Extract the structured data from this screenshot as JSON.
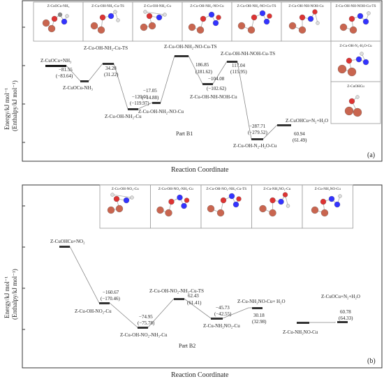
{
  "partA": {
    "ylabel": "Energy/kJ mol⁻¹",
    "ylabel2": "(Enthalpy/kJ mol⁻¹)",
    "xlabel": "Reaction Coordinate",
    "part_label": "Part B1",
    "panel_tag": "(a)",
    "structures": [
      "Z-CuOCu-NH₃",
      "Z-Cu-OH-NH₂-Cu-TS",
      "Z-Cu-OH-NH₂-Cu",
      "Z-Cu-OH-NH₂-NO-Cu",
      "Z-Cu-OH-NH₂-NO-Cu-TS",
      "Z-Cu-OH-NH-NOH-Cu",
      "Z-Cu-OH-NH-NOH-Cu-TS"
    ],
    "side_structures": [
      "Z-Cu-OH-N₂-H₂O-Cu",
      "Z-CuOHCu"
    ],
    "levels": [
      {
        "name": "Z-CuOCu+NH₃",
        "e": "",
        "h": ""
      },
      {
        "name": "Z-CuOCu-NH₃",
        "e": "−81.55",
        "h": "(−83.64)"
      },
      {
        "name": "Z-Cu-OH-NH₂-Cu-TS",
        "e": "34.28",
        "h": "(31.22)"
      },
      {
        "name": "Z-Cu-OH-NH₂-Cu",
        "e": "−120.01",
        "h": "(−119.97)"
      },
      {
        "name": "Z-Cu-OH-NH₂-NO-Cu",
        "e": "−17.05",
        "h": "(−14.88)"
      },
      {
        "name": "Z-Cu-OH-NH₂-NO-Cu-TS",
        "e": "186.85",
        "h": "(181.62)"
      },
      {
        "name": "Z-Cu-OH-NH-NOH-Cu",
        "e": "−104.08",
        "h": "(−102.62)"
      },
      {
        "name": "Z-Cu-OH-NH-NOH-Cu-TS",
        "e": "117.04",
        "h": "(115.95)"
      },
      {
        "name": "Z-Cu-OH-N₂-H₂O-Cu",
        "e": "−287.71",
        "h": "(−279.52)"
      },
      {
        "name": "Z-CuOHCu+N₂+H₂O",
        "e": "60.94",
        "h": "(61.49)"
      }
    ]
  },
  "partB": {
    "ylabel": "Energy/kJ mol⁻¹",
    "ylabel2": "(Enthalpy/kJ mol⁻¹)",
    "xlabel": "Reaction Coordinate",
    "part_label": "Part B2",
    "panel_tag": "(b)",
    "structures": [
      "Z-Cu-OH-NO₂-Cu",
      "Z-Cu-OH-NO₂-NH₃-Cu",
      "Z-Cu-OH-NO₂-NH₃-Cu-TS",
      "Z-Cu-NH₂NO₂-Cu",
      "Z-Cu-NH₂NO-Cu"
    ],
    "levels": [
      {
        "name": "Z-CuOHCu+NO₂",
        "e": "",
        "h": ""
      },
      {
        "name": "Z-Cu-OH-NO₂-Cu",
        "e": "−160.67",
        "h": "(−170.46)"
      },
      {
        "name": "Z-Cu-OH-NO₂-NH₃-Cu",
        "e": "−74.95",
        "h": "(−75.78)"
      },
      {
        "name": "Z-Cu-OH-NO₂-NH₃-Cu-TS",
        "e": "62.43",
        "h": "(61.41)"
      },
      {
        "name": "Z-Cu-NH₂NO₂-Cu",
        "e": "−45.73",
        "h": "(−42.55)"
      },
      {
        "name": "Z-Cu-NH₂NO-Cu+ H₂O",
        "e": "30.18",
        "h": "(32.98)"
      },
      {
        "name": "Z-Cu-NH₂NO-Cu",
        "e": "",
        "h": ""
      },
      {
        "name": "Z-CuOCu+N₂+H₂O",
        "e": "60.78",
        "h": "(64.33)"
      }
    ]
  }
}
